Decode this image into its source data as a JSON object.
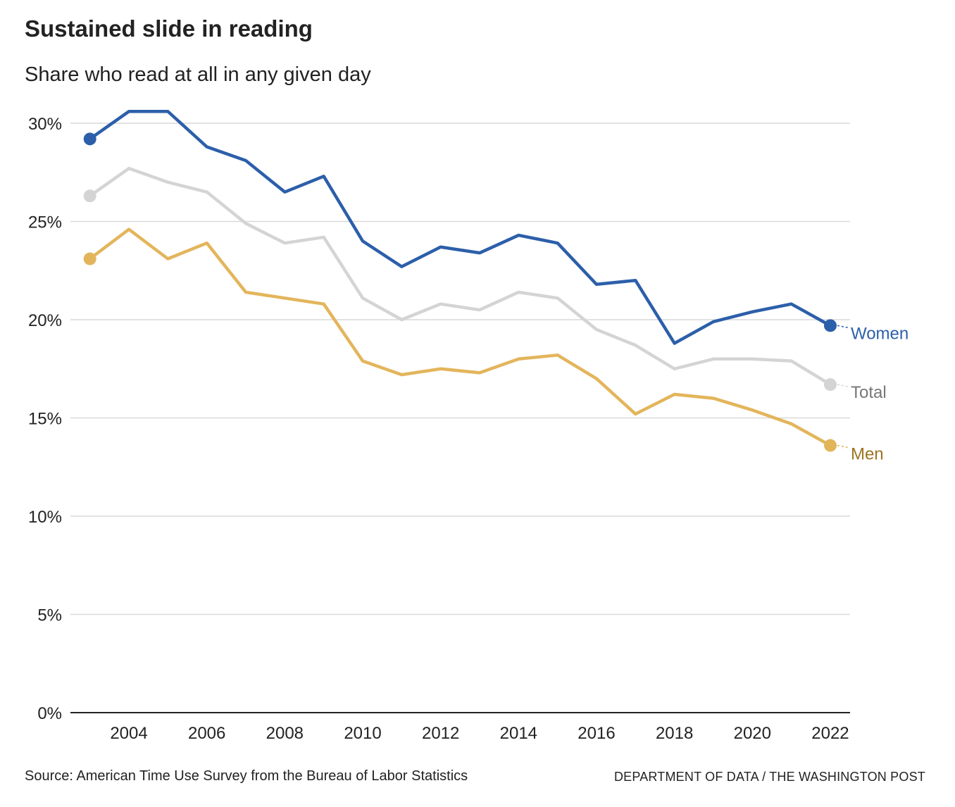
{
  "chart_data": {
    "type": "line",
    "title": "Sustained slide in reading",
    "subtitle": "Share who read at all in any given day",
    "xlabel": "",
    "ylabel": "",
    "ylim": [
      0,
      30
    ],
    "xlim": [
      2003,
      2022
    ],
    "grid": true,
    "y_ticks": [
      0,
      5,
      10,
      15,
      20,
      25,
      30
    ],
    "y_tick_labels": [
      "0%",
      "5%",
      "10%",
      "15%",
      "20%",
      "25%",
      "30%"
    ],
    "x_ticks": [
      2004,
      2006,
      2008,
      2010,
      2012,
      2014,
      2016,
      2018,
      2020,
      2022
    ],
    "x_tick_labels": [
      "2004",
      "2006",
      "2008",
      "2010",
      "2012",
      "2014",
      "2016",
      "2018",
      "2020",
      "2022"
    ],
    "x": [
      2003,
      2004,
      2005,
      2006,
      2007,
      2008,
      2009,
      2010,
      2011,
      2012,
      2013,
      2014,
      2015,
      2016,
      2017,
      2018,
      2019,
      2020,
      2021,
      2022
    ],
    "series": [
      {
        "name": "Total",
        "color": "#d4d4d4",
        "label_color": "#777777",
        "values": [
          26.3,
          27.7,
          27.0,
          26.5,
          24.9,
          23.9,
          24.2,
          21.1,
          20.0,
          20.8,
          20.5,
          21.4,
          21.1,
          19.5,
          18.7,
          17.5,
          18.0,
          18.0,
          17.9,
          16.7
        ]
      },
      {
        "name": "Men",
        "color": "#e3b55b",
        "label_color": "#9c7424",
        "values": [
          23.1,
          24.6,
          23.1,
          23.9,
          21.4,
          21.1,
          20.8,
          17.9,
          17.2,
          17.5,
          17.3,
          18.0,
          18.2,
          17.0,
          15.2,
          16.2,
          16.0,
          15.4,
          14.7,
          13.6
        ]
      },
      {
        "name": "Women",
        "color": "#2c5faa",
        "label_color": "#2c5faa",
        "values": [
          29.2,
          30.6,
          30.6,
          28.8,
          28.1,
          26.5,
          27.3,
          24.0,
          22.7,
          23.7,
          23.4,
          24.3,
          23.9,
          21.8,
          22.0,
          18.8,
          19.9,
          20.4,
          20.8,
          19.7
        ]
      }
    ]
  },
  "footer": {
    "source": "Source: American Time Use Survey from the Bureau of Labor Statistics",
    "credit": "DEPARTMENT OF DATA / THE WASHINGTON POST"
  }
}
